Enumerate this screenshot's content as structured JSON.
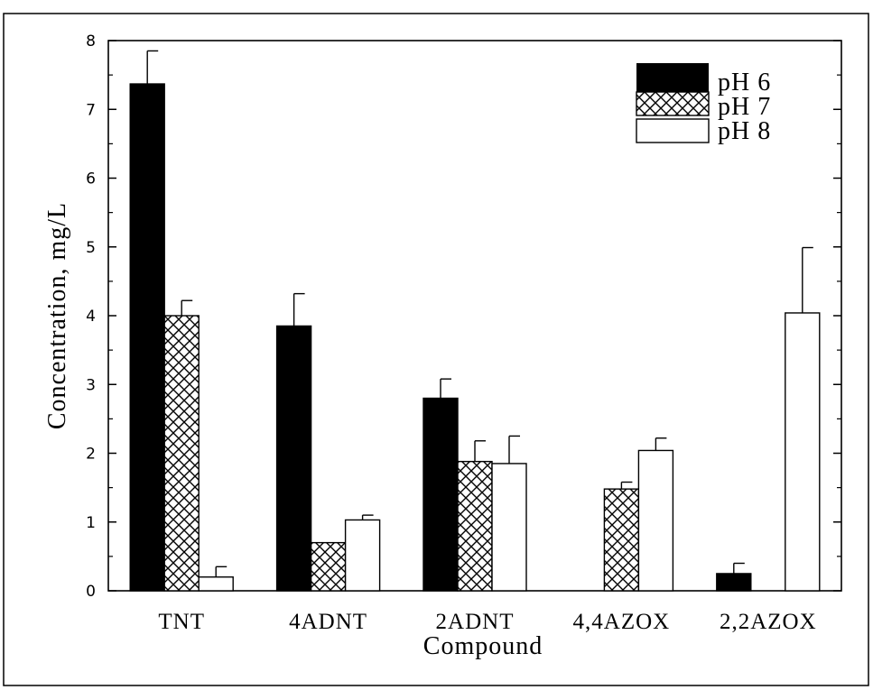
{
  "chart_data": {
    "type": "bar",
    "xlabel": "Compound",
    "ylabel": "Concentration, mg/L",
    "ylim": [
      0,
      8
    ],
    "yticks": [
      "0",
      "1",
      "2",
      "3",
      "4",
      "5",
      "6",
      "7",
      "8"
    ],
    "categories": [
      "TNT",
      "4ADNT",
      "2ADNT",
      "4,4AZOX",
      "2,2AZOX"
    ],
    "legend_position": "top-right",
    "series": [
      {
        "name": "pH 6",
        "pattern": "solid-black",
        "values": [
          7.37,
          3.85,
          2.8,
          null,
          0.25
        ],
        "errors": [
          0.48,
          0.47,
          0.28,
          null,
          0.15
        ]
      },
      {
        "name": "pH 7",
        "pattern": "crosshatch",
        "values": [
          4.0,
          0.7,
          1.88,
          1.48,
          null
        ],
        "errors": [
          0.22,
          0.0,
          0.3,
          0.1,
          null
        ]
      },
      {
        "name": "pH 8",
        "pattern": "white",
        "values": [
          0.2,
          1.03,
          1.85,
          2.04,
          4.04
        ],
        "errors": [
          0.15,
          0.07,
          0.4,
          0.18,
          0.95
        ]
      }
    ]
  }
}
